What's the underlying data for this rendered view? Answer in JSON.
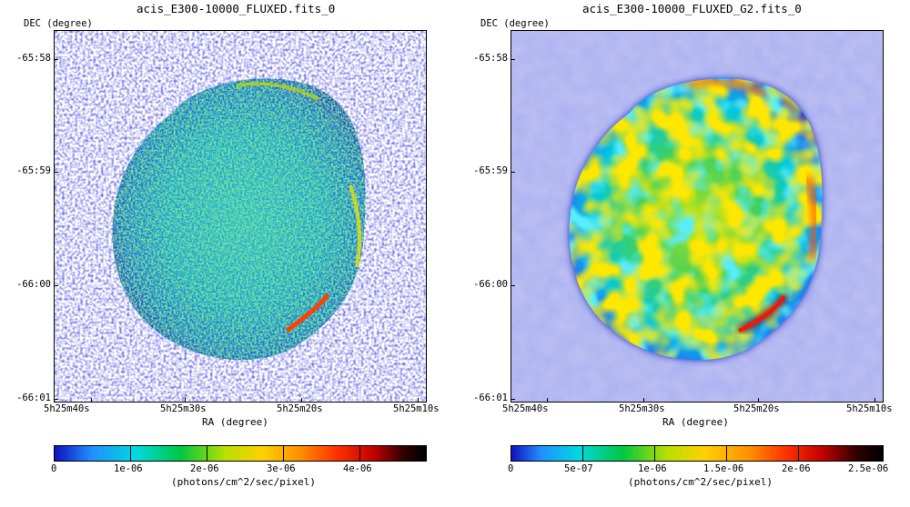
{
  "left_panel": {
    "title": "acis_E300-10000_FLUXED.fits_0",
    "y_axis_label": "DEC (degree)",
    "x_axis_label": "RA (degree)",
    "y_ticks": [
      "-65:58",
      "-65:59",
      "-66:00",
      "-66:01"
    ],
    "x_ticks": [
      "5h25m40s",
      "5h25m30s",
      "5h25m20s",
      "5h25m10s"
    ],
    "colorbar_ticks": [
      "0",
      "1e-06",
      "2e-06",
      "3e-06",
      "4e-06"
    ],
    "colorbar_unit": "(photons/cm^2/sec/pixel)"
  },
  "right_panel": {
    "title": "acis_E300-10000_FLUXED_G2.fits_0",
    "y_axis_label": "DEC (degree)",
    "x_axis_label": "RA (degree)",
    "y_ticks": [
      "-65:58",
      "-65:59",
      "-66:00",
      "-66:01"
    ],
    "x_ticks": [
      "5h25m40s",
      "5h25m30s",
      "5h25m20s",
      "5h25m10s"
    ],
    "colorbar_ticks": [
      "0",
      "5e-07",
      "1e-06",
      "1.5e-06",
      "2e-06",
      "2.5e-06"
    ],
    "colorbar_unit": "(photons/cm^2/sec/pixel)"
  },
  "colormap": [
    "#ffffff",
    "#2020d0",
    "#0090ff",
    "#00e0e0",
    "#00c800",
    "#d8e000",
    "#ffa000",
    "#ff2000",
    "#800000",
    "#000000"
  ]
}
